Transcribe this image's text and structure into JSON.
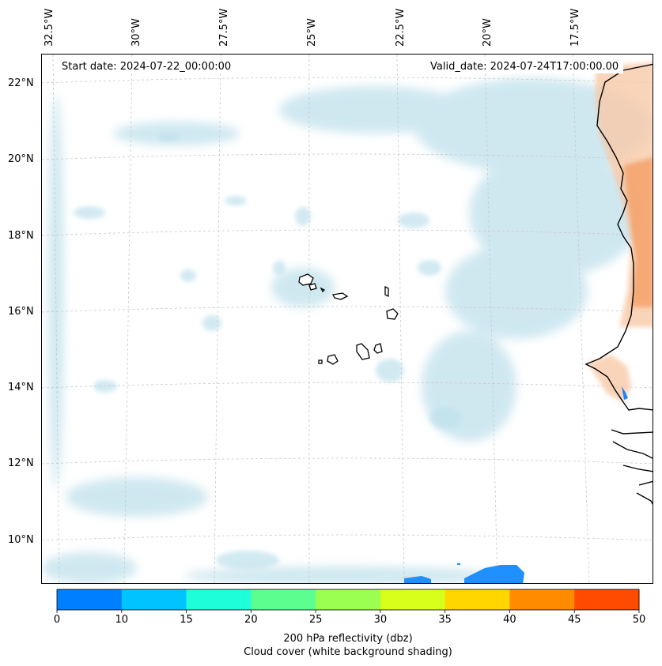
{
  "map": {
    "start_label": "Start date: 2024-07-22_00:00:00",
    "valid_label": "Valid_date: 2024-07-24T17:00:00.00",
    "lon_labels": [
      "32.5°W",
      "30°W",
      "27.5°W",
      "25°W",
      "22.5°W",
      "20°W",
      "17.5°W"
    ],
    "lat_labels": [
      "22°N",
      "20°N",
      "18°N",
      "16°N",
      "14°N",
      "12°N",
      "10°N"
    ]
  },
  "colorbar": {
    "colors": [
      "#0080ff",
      "#00c4ff",
      "#1effd9",
      "#5cff8f",
      "#9bff52",
      "#d8ff1c",
      "#ffd600",
      "#ff8c00",
      "#ff4b00"
    ],
    "ticks": [
      "0",
      "10",
      "15",
      "20",
      "25",
      "30",
      "35",
      "40",
      "45",
      "50"
    ],
    "label": "200 hPa reflectivity (dbz)",
    "sublabel": "Cloud cover (white background shading)"
  }
}
